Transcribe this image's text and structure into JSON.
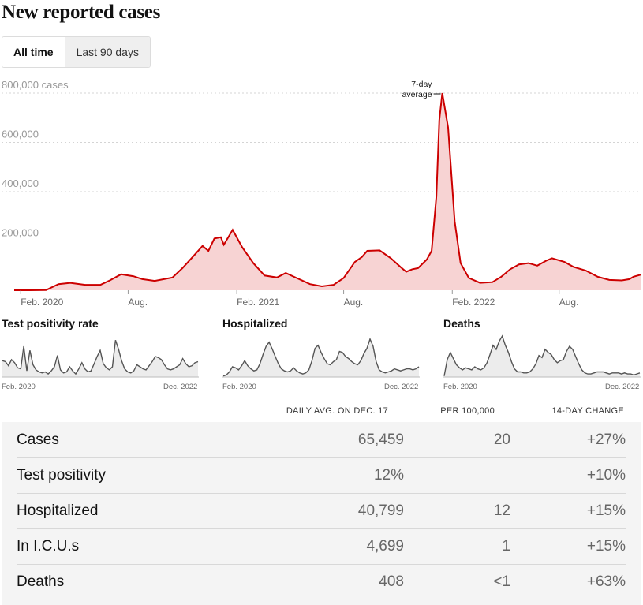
{
  "page": {
    "title": "New reported cases",
    "toggle": {
      "active": "All time",
      "inactive": "Last 90 days"
    }
  },
  "chart_data": [
    {
      "type": "area",
      "title": "New reported cases",
      "y_unit_label": "800,000 cases",
      "y_ticks": [
        "200,000",
        "400,000",
        "600,000"
      ],
      "ylim": [
        0,
        800000
      ],
      "x_ticks": [
        "Feb. 2020",
        "Aug.",
        "Feb. 2021",
        "Aug.",
        "Feb. 2022",
        "Aug."
      ],
      "annotation": {
        "line1": "7-day",
        "line2": "average"
      },
      "series": [
        {
          "name": "7-day average",
          "color": "#cc0000",
          "fill": "#f7d3d3",
          "x": [
            "2020-01-21",
            "2020-02-15",
            "2020-03-15",
            "2020-04-05",
            "2020-04-25",
            "2020-05-20",
            "2020-06-15",
            "2020-07-01",
            "2020-07-20",
            "2020-08-10",
            "2020-08-25",
            "2020-09-15",
            "2020-10-15",
            "2020-11-01",
            "2020-11-20",
            "2020-12-05",
            "2020-12-15",
            "2020-12-25",
            "2021-01-05",
            "2021-01-10",
            "2021-01-25",
            "2021-02-10",
            "2021-03-01",
            "2021-03-20",
            "2021-04-10",
            "2021-04-25",
            "2021-05-15",
            "2021-06-05",
            "2021-06-25",
            "2021-07-15",
            "2021-08-01",
            "2021-08-20",
            "2021-09-01",
            "2021-09-10",
            "2021-10-01",
            "2021-10-20",
            "2021-11-05",
            "2021-11-15",
            "2021-11-25",
            "2021-12-05",
            "2021-12-20",
            "2021-12-28",
            "2022-01-05",
            "2022-01-10",
            "2022-01-15",
            "2022-01-25",
            "2022-02-05",
            "2022-02-15",
            "2022-03-01",
            "2022-03-20",
            "2022-04-10",
            "2022-04-25",
            "2022-05-10",
            "2022-05-25",
            "2022-06-10",
            "2022-06-25",
            "2022-07-10",
            "2022-07-20",
            "2022-08-10",
            "2022-08-25",
            "2022-09-15",
            "2022-10-05",
            "2022-10-25",
            "2022-11-15",
            "2022-11-28",
            "2022-12-05",
            "2022-12-17"
          ],
          "values": [
            0,
            0,
            500,
            25000,
            30000,
            22000,
            22000,
            40000,
            65000,
            57000,
            45000,
            38000,
            52000,
            90000,
            140000,
            180000,
            160000,
            210000,
            215000,
            185000,
            245000,
            175000,
            110000,
            60000,
            52000,
            70000,
            48000,
            25000,
            16000,
            22000,
            50000,
            115000,
            135000,
            160000,
            162000,
            130000,
            95000,
            75000,
            85000,
            90000,
            125000,
            160000,
            380000,
            690000,
            800000,
            660000,
            280000,
            110000,
            50000,
            30000,
            33000,
            55000,
            85000,
            105000,
            110000,
            100000,
            120000,
            130000,
            115000,
            95000,
            80000,
            55000,
            42000,
            40000,
            45000,
            55000,
            63000
          ]
        }
      ]
    },
    {
      "type": "area",
      "title": "Test positivity rate",
      "x_ticks": [
        "Feb. 2020",
        "Dec. 2022"
      ],
      "series": [
        {
          "name": "Test positivity rate",
          "color": "#555555",
          "fill": "#ececec",
          "values": [
            32,
            30,
            22,
            34,
            28,
            18,
            16,
            60,
            12,
            52,
            24,
            14,
            10,
            8,
            10,
            6,
            12,
            20,
            42,
            14,
            8,
            10,
            20,
            12,
            6,
            16,
            28,
            16,
            10,
            12,
            26,
            40,
            52,
            26,
            18,
            14,
            20,
            72,
            54,
            32,
            16,
            10,
            8,
            12,
            24,
            20,
            16,
            14,
            22,
            30,
            40,
            38,
            34,
            24,
            16,
            14,
            16,
            20,
            24,
            36,
            26,
            20,
            22,
            28,
            30
          ]
        }
      ]
    },
    {
      "type": "area",
      "title": "Hospitalized",
      "x_ticks": [
        "Feb. 2020",
        "Dec. 2022"
      ],
      "series": [
        {
          "name": "Hospitalized",
          "color": "#555555",
          "fill": "#ececec",
          "values": [
            2,
            4,
            10,
            20,
            18,
            14,
            22,
            32,
            22,
            16,
            12,
            14,
            26,
            44,
            60,
            68,
            55,
            40,
            26,
            16,
            12,
            10,
            12,
            18,
            12,
            8,
            6,
            8,
            14,
            32,
            56,
            62,
            48,
            36,
            26,
            24,
            30,
            34,
            50,
            48,
            40,
            36,
            30,
            26,
            24,
            32,
            46,
            56,
            74,
            60,
            30,
            14,
            10,
            8,
            10,
            12,
            16,
            14,
            12,
            14,
            16,
            16,
            14,
            16,
            20
          ]
        }
      ]
    },
    {
      "type": "area",
      "title": "Deaths",
      "x_ticks": [
        "Feb. 2020",
        "Dec. 2022"
      ],
      "series": [
        {
          "name": "Deaths",
          "color": "#555555",
          "fill": "#ececec",
          "values": [
            2,
            34,
            48,
            36,
            24,
            18,
            14,
            18,
            16,
            14,
            20,
            16,
            14,
            18,
            28,
            44,
            62,
            54,
            70,
            80,
            62,
            48,
            30,
            16,
            10,
            10,
            8,
            8,
            10,
            16,
            26,
            42,
            38,
            54,
            48,
            44,
            34,
            28,
            32,
            34,
            50,
            60,
            54,
            40,
            26,
            14,
            8,
            6,
            6,
            8,
            10,
            10,
            10,
            8,
            6,
            8,
            8,
            8,
            6,
            8,
            6,
            6,
            4,
            6,
            8
          ]
        }
      ]
    }
  ],
  "table": {
    "headers": {
      "daily": "DAILY AVG. ON DEC. 17",
      "per100k": "PER 100,000",
      "change": "14-DAY CHANGE"
    },
    "rows": [
      {
        "label": "Cases",
        "daily": "65,459",
        "per100k": "20",
        "change": "+27%"
      },
      {
        "label": "Test positivity",
        "daily": "12%",
        "per100k": "",
        "change": "+10%"
      },
      {
        "label": "Hospitalized",
        "daily": "40,799",
        "per100k": "12",
        "change": "+15%"
      },
      {
        "label": "In I.C.U.s",
        "daily": "4,699",
        "per100k": "1",
        "change": "+15%"
      },
      {
        "label": "Deaths",
        "daily": "408",
        "per100k": "<1",
        "change": "+63%"
      }
    ]
  }
}
